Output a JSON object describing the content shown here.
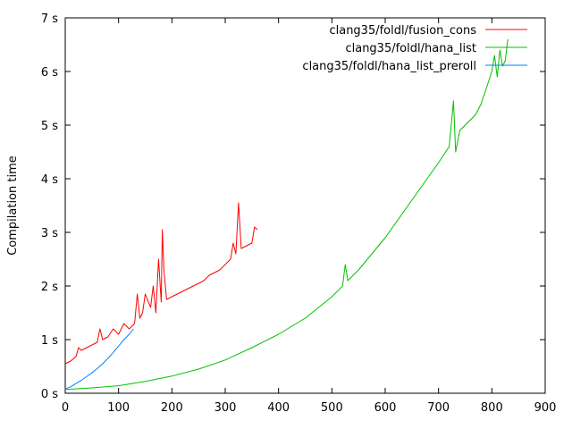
{
  "chart_data": {
    "type": "line",
    "title": "",
    "xlabel": "",
    "ylabel": "Compilation time",
    "xlim": [
      0,
      900
    ],
    "ylim": [
      0,
      7
    ],
    "x_ticks": [
      0,
      100,
      200,
      300,
      400,
      500,
      600,
      700,
      800,
      900
    ],
    "x_tick_labels": [
      "0",
      "100",
      "200",
      "300",
      "400",
      "500",
      "600",
      "700",
      "800",
      "900"
    ],
    "y_ticks": [
      0,
      1,
      2,
      3,
      4,
      5,
      6,
      7
    ],
    "y_tick_labels": [
      "0 s",
      "1 s",
      "2 s",
      "3 s",
      "4 s",
      "5 s",
      "6 s",
      "7 s"
    ],
    "grid": false,
    "legend_position": "top-right",
    "series": [
      {
        "name": "clang35/foldl/fusion_cons",
        "color": "#ff0000",
        "x": [
          0,
          10,
          20,
          25,
          30,
          40,
          50,
          60,
          65,
          70,
          80,
          90,
          100,
          110,
          120,
          130,
          135,
          140,
          145,
          150,
          160,
          165,
          170,
          175,
          180,
          182,
          185,
          190,
          200,
          210,
          220,
          230,
          240,
          250,
          260,
          270,
          280,
          290,
          300,
          310,
          315,
          320,
          325,
          330,
          340,
          350,
          355,
          360
        ],
        "values": [
          0.55,
          0.6,
          0.68,
          0.85,
          0.8,
          0.85,
          0.9,
          0.95,
          1.2,
          1.0,
          1.05,
          1.2,
          1.1,
          1.3,
          1.2,
          1.3,
          1.85,
          1.4,
          1.5,
          1.85,
          1.6,
          2.0,
          1.5,
          2.5,
          1.7,
          3.05,
          2.3,
          1.75,
          1.8,
          1.85,
          1.9,
          1.95,
          2.0,
          2.05,
          2.1,
          2.2,
          2.25,
          2.3,
          2.4,
          2.5,
          2.8,
          2.6,
          3.55,
          2.7,
          2.75,
          2.8,
          3.1,
          3.05
        ]
      },
      {
        "name": "clang35/foldl/hana_list",
        "color": "#00c000",
        "x": [
          0,
          50,
          100,
          150,
          200,
          250,
          300,
          350,
          400,
          450,
          500,
          520,
          525,
          530,
          550,
          600,
          650,
          700,
          720,
          728,
          732,
          740,
          750,
          760,
          770,
          780,
          790,
          800,
          805,
          810,
          815,
          820,
          825,
          830
        ],
        "values": [
          0.07,
          0.1,
          0.14,
          0.22,
          0.32,
          0.45,
          0.62,
          0.85,
          1.1,
          1.4,
          1.8,
          2.0,
          2.4,
          2.1,
          2.3,
          2.9,
          3.6,
          4.3,
          4.6,
          5.45,
          4.5,
          4.9,
          5.0,
          5.1,
          5.2,
          5.4,
          5.7,
          6.0,
          6.3,
          5.9,
          6.4,
          6.1,
          6.2,
          6.6
        ]
      },
      {
        "name": "clang35/foldl/hana_list_preroll",
        "color": "#0080ff",
        "x": [
          0,
          10,
          20,
          30,
          40,
          50,
          60,
          70,
          80,
          90,
          100,
          110,
          120,
          128
        ],
        "values": [
          0.08,
          0.12,
          0.18,
          0.24,
          0.31,
          0.38,
          0.46,
          0.55,
          0.65,
          0.76,
          0.88,
          1.0,
          1.1,
          1.2
        ]
      }
    ]
  }
}
